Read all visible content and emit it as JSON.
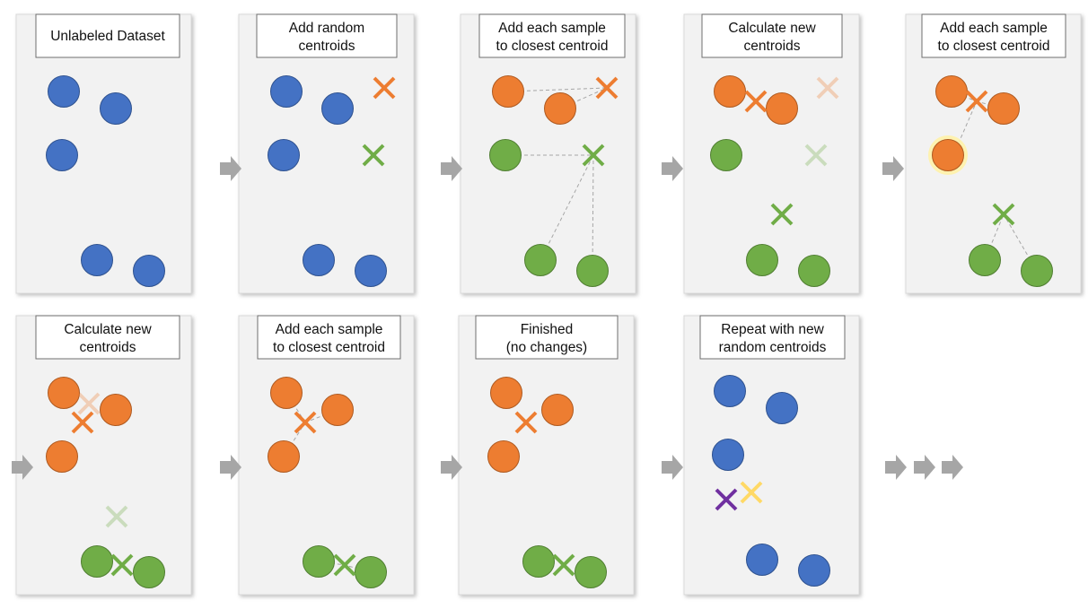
{
  "panels": [
    {
      "id": "p1",
      "title": [
        "Unlabeled Dataset"
      ],
      "points": [
        {
          "c": "blue"
        },
        {
          "c": "blue"
        },
        {
          "c": "blue"
        },
        {
          "c": "blue"
        },
        {
          "c": "blue"
        }
      ],
      "centroids": []
    },
    {
      "id": "p2",
      "title": [
        "Add random",
        "centroids"
      ],
      "points": [
        {
          "c": "blue"
        },
        {
          "c": "blue"
        },
        {
          "c": "blue"
        },
        {
          "c": "blue"
        },
        {
          "c": "blue"
        }
      ],
      "centroids": [
        {
          "c": "orange"
        },
        {
          "c": "green"
        }
      ]
    },
    {
      "id": "p3",
      "title": [
        "Add each sample",
        "to closest centroid"
      ],
      "points": [
        {
          "c": "orange"
        },
        {
          "c": "orange"
        },
        {
          "c": "green"
        },
        {
          "c": "green"
        },
        {
          "c": "green"
        }
      ],
      "centroids": [
        {
          "c": "orange"
        },
        {
          "c": "green"
        }
      ]
    },
    {
      "id": "p4",
      "title": [
        "Calculate new",
        "centroids"
      ],
      "points": [
        {
          "c": "orange"
        },
        {
          "c": "orange"
        },
        {
          "c": "green"
        },
        {
          "c": "green"
        },
        {
          "c": "green"
        }
      ],
      "centroids": [
        {
          "c": "orange",
          "faded": true
        },
        {
          "c": "green",
          "faded": true
        },
        {
          "c": "orange"
        },
        {
          "c": "green"
        }
      ]
    },
    {
      "id": "p5",
      "title": [
        "Add each sample",
        "to closest centroid"
      ],
      "points": [
        {
          "c": "orange"
        },
        {
          "c": "orange"
        },
        {
          "c": "orange",
          "highlight": true
        },
        {
          "c": "green"
        },
        {
          "c": "green"
        }
      ],
      "centroids": [
        {
          "c": "orange"
        },
        {
          "c": "green"
        }
      ]
    },
    {
      "id": "p6",
      "title": [
        "Calculate new",
        "centroids"
      ],
      "points": [
        {
          "c": "orange"
        },
        {
          "c": "orange"
        },
        {
          "c": "orange"
        },
        {
          "c": "green"
        },
        {
          "c": "green"
        }
      ],
      "centroids": [
        {
          "c": "orange",
          "faded": true
        },
        {
          "c": "green",
          "faded": true
        },
        {
          "c": "orange"
        },
        {
          "c": "green"
        }
      ]
    },
    {
      "id": "p7",
      "title": [
        "Add each sample",
        "to closest centroid"
      ],
      "points": [
        {
          "c": "orange"
        },
        {
          "c": "orange"
        },
        {
          "c": "orange"
        },
        {
          "c": "green"
        },
        {
          "c": "green"
        }
      ],
      "centroids": [
        {
          "c": "orange"
        },
        {
          "c": "green"
        }
      ]
    },
    {
      "id": "p8",
      "title": [
        "Finished",
        "(no changes)"
      ],
      "points": [
        {
          "c": "orange"
        },
        {
          "c": "orange"
        },
        {
          "c": "orange"
        },
        {
          "c": "green"
        },
        {
          "c": "green"
        }
      ],
      "centroids": [
        {
          "c": "orange"
        },
        {
          "c": "green"
        }
      ]
    },
    {
      "id": "p9",
      "title": [
        "Repeat with new",
        "random centroids"
      ],
      "points": [
        {
          "c": "blue"
        },
        {
          "c": "blue"
        },
        {
          "c": "blue"
        },
        {
          "c": "blue"
        },
        {
          "c": "blue"
        }
      ],
      "centroids": [
        {
          "c": "purple"
        },
        {
          "c": "yellow"
        }
      ]
    }
  ],
  "colors": {
    "blue": "#4472C4",
    "blue_stroke": "#2F528F",
    "orange": "#ED7D31",
    "orange_stroke": "#AE5A21",
    "green": "#70AD47",
    "green_stroke": "#507E32",
    "purple": "#7030A0",
    "yellow": "#FFD966",
    "panel_bg": "#F2F2F2",
    "arrow": "#A6A6A6",
    "dash": "#A6A6A6",
    "highlight": "#FFF2A8"
  }
}
